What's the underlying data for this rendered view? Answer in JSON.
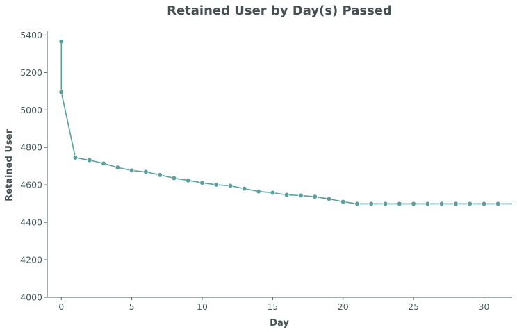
{
  "colors": {
    "line": "#5a9e9e",
    "marker_edge": "#ffffff",
    "axis": "#4a5a5a",
    "text": "#465a5a",
    "title": "#465050"
  },
  "chart_data": {
    "type": "line",
    "title": "Retained User by Day(s) Passed",
    "xlabel": "Day",
    "ylabel": "Retained User",
    "xlim": [
      -1,
      32
    ],
    "ylim": [
      4000,
      5420
    ],
    "xticks": [
      0,
      5,
      10,
      15,
      20,
      25,
      30
    ],
    "yticks": [
      4000,
      4200,
      4400,
      4600,
      4800,
      5000,
      5200,
      5400
    ],
    "grid": false,
    "markers": true,
    "series": [
      {
        "x": [
          0,
          0,
          1,
          2,
          3,
          4,
          5,
          6,
          7,
          8,
          9,
          10,
          11,
          12,
          13,
          14,
          15,
          16,
          17,
          18,
          19,
          20,
          21,
          22,
          23,
          24,
          25,
          26,
          27,
          28,
          29,
          30,
          31,
          32
        ],
        "values": [
          5365,
          5095,
          4745,
          4732,
          4714,
          4693,
          4677,
          4669,
          4653,
          4636,
          4624,
          4611,
          4601,
          4595,
          4580,
          4565,
          4558,
          4547,
          4543,
          4537,
          4525,
          4510,
          4499,
          4499,
          4499,
          4499,
          4499,
          4499,
          4499,
          4499,
          4499,
          4499,
          4499,
          4499
        ],
        "marker_count": 33
      }
    ]
  }
}
